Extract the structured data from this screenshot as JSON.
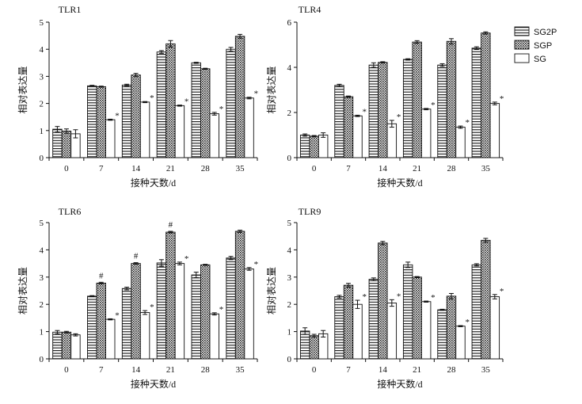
{
  "chart_data": [
    {
      "type": "bar",
      "title": "TLR1",
      "xlabel": "接种天数/d",
      "ylabel": "相对表达量",
      "ylim": [
        0,
        5
      ],
      "yticks": [
        0,
        1,
        2,
        3,
        4,
        5
      ],
      "categories": [
        "0",
        "7",
        "14",
        "21",
        "28",
        "35"
      ],
      "series": [
        {
          "name": "SG2P",
          "values": [
            1.05,
            2.65,
            2.68,
            3.9,
            3.5,
            4.0
          ],
          "errors": [
            0.1,
            0.02,
            0.03,
            0.05,
            0.02,
            0.07
          ],
          "labels": [
            "",
            "",
            "",
            "",
            "",
            ""
          ]
        },
        {
          "name": "SGP",
          "values": [
            0.98,
            2.62,
            3.05,
            4.2,
            3.28,
            4.48
          ],
          "errors": [
            0.08,
            0.02,
            0.06,
            0.12,
            0.02,
            0.07
          ],
          "labels": [
            "",
            "",
            "",
            "",
            "",
            ""
          ]
        },
        {
          "name": "SG",
          "values": [
            0.88,
            1.4,
            2.05,
            1.92,
            1.62,
            2.2
          ],
          "errors": [
            0.15,
            0.02,
            0.02,
            0.02,
            0.05,
            0.03
          ],
          "labels": [
            "",
            "*",
            "*",
            "*",
            "*",
            "*"
          ]
        }
      ]
    },
    {
      "type": "bar",
      "title": "TLR4",
      "xlabel": "接种天数/d",
      "ylabel": "相对表达量",
      "ylim": [
        0,
        6
      ],
      "yticks": [
        0,
        2,
        4,
        6
      ],
      "categories": [
        "0",
        "7",
        "14",
        "21",
        "28",
        "35"
      ],
      "series": [
        {
          "name": "SG2P",
          "values": [
            1.0,
            3.2,
            4.1,
            4.35,
            4.1,
            4.85
          ],
          "errors": [
            0.05,
            0.05,
            0.1,
            0.03,
            0.06,
            0.06
          ],
          "labels": [
            "",
            "",
            "",
            "",
            "",
            ""
          ]
        },
        {
          "name": "SGP",
          "values": [
            0.95,
            2.7,
            4.22,
            5.12,
            5.15,
            5.52
          ],
          "errors": [
            0.03,
            0.03,
            0.03,
            0.06,
            0.12,
            0.05
          ],
          "labels": [
            "",
            "",
            "",
            "",
            "",
            ""
          ]
        },
        {
          "name": "SG",
          "values": [
            1.0,
            1.85,
            1.5,
            2.15,
            1.35,
            2.4
          ],
          "errors": [
            0.1,
            0.03,
            0.15,
            0.03,
            0.05,
            0.06
          ],
          "labels": [
            "",
            "*",
            "*",
            "*",
            "*",
            "*"
          ]
        }
      ]
    },
    {
      "type": "bar",
      "title": "TLR6",
      "xlabel": "接种天数/d",
      "ylabel": "相对表达量",
      "ylim": [
        0,
        5
      ],
      "yticks": [
        0,
        1,
        2,
        3,
        4,
        5
      ],
      "categories": [
        "0",
        "7",
        "14",
        "21",
        "28",
        "35"
      ],
      "series": [
        {
          "name": "SG2P",
          "values": [
            0.98,
            2.3,
            2.58,
            3.52,
            3.08,
            3.7
          ],
          "errors": [
            0.06,
            0.02,
            0.05,
            0.12,
            0.1,
            0.06
          ],
          "labels": [
            "",
            "",
            "",
            "",
            "",
            ""
          ]
        },
        {
          "name": "SGP",
          "values": [
            0.98,
            2.78,
            3.5,
            4.65,
            3.45,
            4.68
          ],
          "errors": [
            0.03,
            0.03,
            0.03,
            0.03,
            0.02,
            0.04
          ],
          "labels": [
            "",
            "#",
            "#",
            "#",
            "",
            ""
          ]
        },
        {
          "name": "SG",
          "values": [
            0.88,
            1.45,
            1.7,
            3.5,
            1.65,
            3.3
          ],
          "errors": [
            0.04,
            0.02,
            0.07,
            0.05,
            0.04,
            0.05
          ],
          "labels": [
            "",
            "*",
            "*",
            "*",
            "*",
            "*"
          ]
        }
      ]
    },
    {
      "type": "bar",
      "title": "TLR9",
      "xlabel": "接种天数/d",
      "ylabel": "相对表达量",
      "ylim": [
        0,
        5
      ],
      "yticks": [
        0,
        1,
        2,
        3,
        4,
        5
      ],
      "categories": [
        "0",
        "7",
        "14",
        "21",
        "28",
        "35"
      ],
      "series": [
        {
          "name": "SG2P",
          "values": [
            1.02,
            2.28,
            2.92,
            3.45,
            1.8,
            3.45
          ],
          "errors": [
            0.12,
            0.05,
            0.05,
            0.1,
            0.02,
            0.04
          ],
          "labels": [
            "",
            "",
            "",
            "",
            "",
            ""
          ]
        },
        {
          "name": "SGP",
          "values": [
            0.85,
            2.7,
            4.25,
            3.0,
            2.3,
            4.35
          ],
          "errors": [
            0.05,
            0.07,
            0.06,
            0.02,
            0.1,
            0.07
          ],
          "labels": [
            "",
            "",
            "",
            "",
            "",
            ""
          ]
        },
        {
          "name": "SG",
          "values": [
            0.92,
            2.0,
            2.05,
            2.1,
            1.2,
            2.28
          ],
          "errors": [
            0.12,
            0.15,
            0.12,
            0.02,
            0.02,
            0.08
          ],
          "labels": [
            "",
            "*",
            "*",
            "*",
            "*",
            "*"
          ]
        }
      ]
    }
  ],
  "legend": {
    "items": [
      {
        "name": "SG2P",
        "pattern": "horizontal-stripes"
      },
      {
        "name": "SGP",
        "pattern": "crosshatch"
      },
      {
        "name": "SG",
        "pattern": "plain"
      }
    ]
  }
}
